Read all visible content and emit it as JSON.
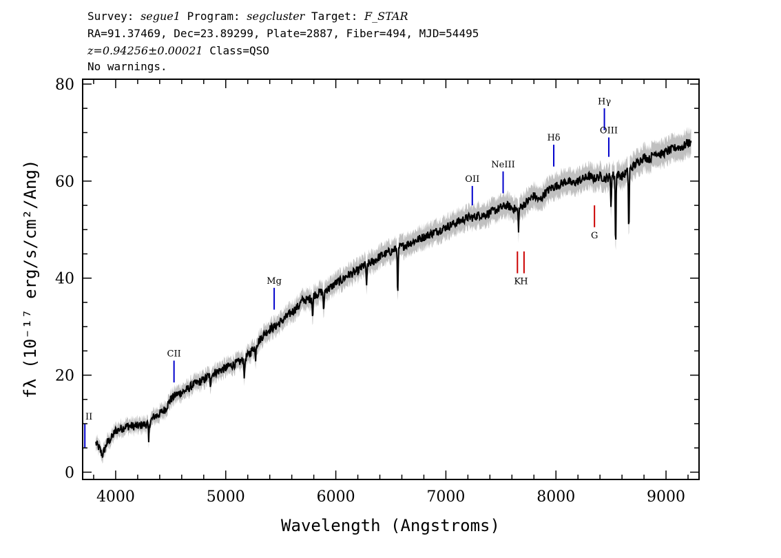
{
  "header": {
    "line1": {
      "survey_label": "Survey: ",
      "survey": "segue1",
      "program_label": " Program: ",
      "program": "segcluster",
      "target_label": " Target: ",
      "target": "F_STAR"
    },
    "line2": "RA=91.37469, Dec=23.89299, Plate=2887, Fiber=494, MJD=54495",
    "line3": {
      "z": "z=0.94256±0.00021",
      "class": " Class=QSO"
    },
    "line4": "No warnings."
  },
  "chart_data": {
    "type": "line",
    "xlabel": "Wavelength (Angstroms)",
    "ylabel": "fλ (10⁻¹⁷ erg/s/cm²/Ang)",
    "xlim": [
      3700,
      9300
    ],
    "ylim": [
      -1.5,
      81
    ],
    "xticks": [
      4000,
      5000,
      6000,
      7000,
      8000,
      9000
    ],
    "yticks": [
      0,
      20,
      40,
      60,
      80
    ],
    "colors": {
      "flux": "#000000",
      "error_band": "#c0c0c0",
      "emission": "#0000cc",
      "absorption": "#cc0000"
    },
    "series": [
      {
        "x": [
          3820,
          3850,
          3880,
          3920,
          3960,
          4000,
          4050,
          4100,
          4150,
          4200,
          4250,
          4300,
          4350,
          4400,
          4450,
          4500,
          4550,
          4600,
          4650,
          4700,
          4750,
          4800,
          4850,
          4900,
          4950,
          5000,
          5050,
          5100,
          5150,
          5200,
          5250,
          5300,
          5350,
          5400,
          5450,
          5500,
          5550,
          5600,
          5650,
          5700,
          5750,
          5800,
          5850,
          5900,
          5950,
          6000,
          6050,
          6100,
          6150,
          6200,
          6250,
          6300,
          6350,
          6400,
          6450,
          6500,
          6550,
          6600,
          6650,
          6700,
          6750,
          6800,
          6850,
          6900,
          6950,
          7000,
          7050,
          7100,
          7150,
          7200,
          7250,
          7300,
          7350,
          7400,
          7450,
          7500,
          7550,
          7600,
          7650,
          7700,
          7750,
          7800,
          7850,
          7900,
          7950,
          8000,
          8050,
          8100,
          8150,
          8200,
          8250,
          8300,
          8350,
          8400,
          8450,
          8500,
          8550,
          8600,
          8650,
          8700,
          8750,
          8800,
          8850,
          8900,
          8950,
          9000,
          9050,
          9100,
          9150,
          9200,
          9230
        ],
        "y": [
          6,
          5,
          3.5,
          6,
          7,
          8.5,
          9,
          9.5,
          9.5,
          9.5,
          9.8,
          10,
          11.5,
          12,
          13,
          15,
          16,
          16.5,
          17,
          18,
          18.5,
          19,
          20,
          20.5,
          21,
          21.5,
          22,
          22.5,
          23,
          24,
          25.5,
          27,
          28.5,
          29.5,
          30,
          31,
          32,
          33,
          34,
          35.5,
          35.5,
          36.5,
          37,
          37.5,
          38,
          39,
          39.5,
          40.5,
          41,
          41.5,
          42.5,
          43,
          43.5,
          44.5,
          45,
          45.5,
          46,
          46.5,
          47,
          47.5,
          48,
          48.5,
          49,
          49.5,
          50,
          50.5,
          51,
          51.5,
          52,
          52.5,
          52.5,
          53,
          53,
          53.5,
          54,
          54.5,
          55,
          54.5,
          54,
          55,
          56,
          57,
          56,
          57.5,
          58.5,
          59,
          59.5,
          60,
          59.5,
          60,
          60.5,
          61,
          60.5,
          61,
          60.5,
          61,
          61.5,
          61,
          62,
          63,
          64,
          65,
          64.5,
          66,
          65.5,
          66,
          66.5,
          67,
          67,
          68,
          67.5
        ]
      }
    ],
    "absorption_dips": [
      {
        "x": 4300,
        "depth": 4
      },
      {
        "x": 4860,
        "depth": 3
      },
      {
        "x": 5170,
        "depth": 4
      },
      {
        "x": 5270,
        "depth": 3
      },
      {
        "x": 5790,
        "depth": 4.5
      },
      {
        "x": 5890,
        "depth": 5
      },
      {
        "x": 6280,
        "depth": 5
      },
      {
        "x": 6563,
        "depth": 10
      },
      {
        "x": 7660,
        "depth": 4
      },
      {
        "x": 8500,
        "depth": 6
      },
      {
        "x": 8542,
        "depth": 15
      },
      {
        "x": 8662,
        "depth": 13
      }
    ],
    "line_markers": [
      {
        "label": "II",
        "x": 3720,
        "y_bottom": 5,
        "y_top": 10,
        "color": "#0000cc",
        "label_pos": "above"
      },
      {
        "label": "CII",
        "x": 4530,
        "y_bottom": 18.5,
        "y_top": 23,
        "color": "#0000cc",
        "label_pos": "above"
      },
      {
        "label": "Mg",
        "x": 5440,
        "y_bottom": 33.5,
        "y_top": 38,
        "color": "#0000cc",
        "label_pos": "above"
      },
      {
        "label": "OII",
        "x": 7240,
        "y_bottom": 55,
        "y_top": 59,
        "color": "#0000cc",
        "label_pos": "above"
      },
      {
        "label": "NeIII",
        "x": 7520,
        "y_bottom": 57.5,
        "y_top": 62,
        "color": "#0000cc",
        "label_pos": "above"
      },
      {
        "label": "Hδ",
        "x": 7980,
        "y_bottom": 63,
        "y_top": 67.5,
        "color": "#0000cc",
        "label_pos": "above"
      },
      {
        "label": "Hγ",
        "x": 8440,
        "y_bottom": 70.5,
        "y_top": 75,
        "color": "#0000cc",
        "label_pos": "above"
      },
      {
        "label": "OIII",
        "x": 8480,
        "y_bottom": 65,
        "y_top": 69,
        "color": "#0000cc",
        "label_pos": "above"
      },
      {
        "label": "K",
        "x": 7650,
        "y_bottom": 41,
        "y_top": 45.5,
        "color": "#cc0000",
        "label_pos": "below"
      },
      {
        "label": "H",
        "x": 7710,
        "y_bottom": 41,
        "y_top": 45.5,
        "color": "#cc0000",
        "label_pos": "below"
      },
      {
        "label": "G",
        "x": 8350,
        "y_bottom": 50.5,
        "y_top": 55,
        "color": "#cc0000",
        "label_pos": "below"
      }
    ]
  }
}
